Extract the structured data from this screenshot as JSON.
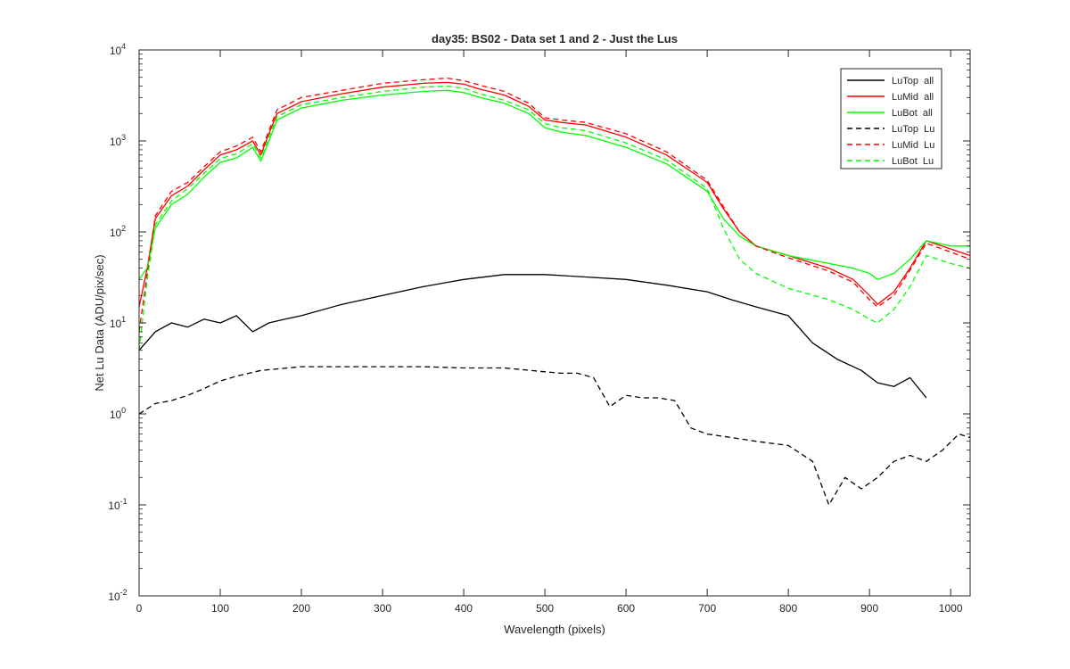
{
  "chart_data": {
    "type": "line",
    "title": "day35: BS02 - Data set 1 and 2 - Just the Lus",
    "xlabel": "Wavelength (pixels)",
    "ylabel": "Net Lu Data (ADU/pix/sec)",
    "xlim": [
      0,
      1024
    ],
    "ylim": [
      0.01,
      10000
    ],
    "yscale": "log",
    "grid": false,
    "legend_position": "top-right",
    "x_ticks": [
      "0",
      "100",
      "200",
      "300",
      "400",
      "500",
      "600",
      "700",
      "800",
      "900",
      "1000"
    ],
    "y_ticks": [
      {
        "base": "10",
        "exp": "-2"
      },
      {
        "base": "10",
        "exp": "-1"
      },
      {
        "base": "10",
        "exp": "0"
      },
      {
        "base": "10",
        "exp": "1"
      },
      {
        "base": "10",
        "exp": "2"
      },
      {
        "base": "10",
        "exp": "3"
      },
      {
        "base": "10",
        "exp": "4"
      }
    ],
    "colors": {
      "black": "#000000",
      "red": "#ff0000",
      "green": "#00ff00"
    },
    "series": [
      {
        "name": "LuTop  all",
        "color": "#000000",
        "dash": "solid",
        "x": [
          0,
          20,
          40,
          60,
          80,
          100,
          120,
          140,
          160,
          180,
          200,
          250,
          300,
          350,
          400,
          450,
          500,
          550,
          600,
          650,
          700,
          730,
          760,
          800,
          830,
          860,
          890,
          910,
          930,
          950,
          970
        ],
        "y": [
          5,
          8,
          10,
          9,
          11,
          10,
          12,
          8,
          10,
          11,
          12,
          16,
          20,
          25,
          30,
          34,
          34,
          32,
          30,
          26,
          22,
          18,
          15,
          12,
          6,
          4,
          3,
          2.2,
          2,
          2.5,
          1.5
        ]
      },
      {
        "name": "LuMid  all",
        "color": "#ff0000",
        "dash": "solid",
        "x": [
          0,
          10,
          20,
          40,
          60,
          80,
          100,
          120,
          140,
          150,
          160,
          170,
          200,
          250,
          300,
          350,
          380,
          400,
          420,
          450,
          480,
          500,
          520,
          550,
          600,
          650,
          700,
          720,
          740,
          760,
          800,
          850,
          880,
          900,
          910,
          930,
          950,
          970,
          1000,
          1024
        ],
        "y": [
          15,
          40,
          140,
          250,
          320,
          480,
          700,
          800,
          1000,
          700,
          1200,
          2000,
          2700,
          3300,
          3900,
          4300,
          4400,
          4200,
          3700,
          3200,
          2400,
          1700,
          1600,
          1500,
          1100,
          700,
          350,
          180,
          100,
          70,
          55,
          40,
          30,
          20,
          16,
          22,
          40,
          80,
          65,
          55
        ]
      },
      {
        "name": "LuBot  all",
        "color": "#00ff00",
        "dash": "solid",
        "x": [
          0,
          10,
          20,
          40,
          60,
          80,
          100,
          120,
          140,
          150,
          160,
          170,
          200,
          250,
          300,
          350,
          380,
          400,
          420,
          450,
          480,
          500,
          520,
          550,
          600,
          650,
          700,
          720,
          740,
          760,
          800,
          850,
          880,
          900,
          910,
          930,
          950,
          970,
          1000,
          1024
        ],
        "y": [
          30,
          40,
          110,
          200,
          260,
          400,
          580,
          650,
          850,
          600,
          1000,
          1700,
          2300,
          2800,
          3200,
          3500,
          3600,
          3400,
          3000,
          2600,
          2000,
          1400,
          1250,
          1150,
          850,
          560,
          280,
          140,
          90,
          70,
          55,
          45,
          40,
          35,
          30,
          35,
          50,
          80,
          70,
          70
        ]
      },
      {
        "name": "LuTop  Lu",
        "color": "#000000",
        "dash": "dashed",
        "x": [
          0,
          20,
          40,
          60,
          80,
          100,
          120,
          150,
          200,
          250,
          300,
          350,
          400,
          450,
          500,
          520,
          540,
          560,
          580,
          600,
          620,
          640,
          660,
          680,
          700,
          730,
          760,
          800,
          830,
          850,
          870,
          890,
          910,
          930,
          950,
          970,
          990,
          1010,
          1024
        ],
        "y": [
          1,
          1.3,
          1.4,
          1.6,
          1.9,
          2.3,
          2.6,
          3,
          3.3,
          3.3,
          3.3,
          3.3,
          3.2,
          3.2,
          2.9,
          2.8,
          2.8,
          2.5,
          1.2,
          1.6,
          1.5,
          1.5,
          1.4,
          0.7,
          0.6,
          0.55,
          0.5,
          0.45,
          0.3,
          0.1,
          0.2,
          0.15,
          0.2,
          0.3,
          0.35,
          0.3,
          0.4,
          0.6,
          0.55
        ]
      },
      {
        "name": "LuMid  Lu",
        "color": "#ff0000",
        "dash": "dashed",
        "x": [
          0,
          10,
          20,
          40,
          60,
          80,
          100,
          120,
          140,
          150,
          160,
          170,
          200,
          250,
          300,
          350,
          380,
          400,
          420,
          450,
          480,
          500,
          520,
          550,
          600,
          650,
          700,
          720,
          740,
          760,
          800,
          850,
          880,
          900,
          910,
          930,
          950,
          970,
          1000,
          1024
        ],
        "y": [
          8,
          35,
          150,
          280,
          350,
          520,
          760,
          880,
          1100,
          760,
          1300,
          2200,
          3000,
          3600,
          4300,
          4700,
          4900,
          4600,
          4100,
          3500,
          2600,
          1800,
          1700,
          1600,
          1200,
          760,
          370,
          190,
          100,
          70,
          52,
          37,
          28,
          18,
          15,
          20,
          38,
          75,
          60,
          50
        ]
      },
      {
        "name": "LuBot  Lu",
        "color": "#00ff00",
        "dash": "dashed",
        "x": [
          0,
          10,
          20,
          40,
          60,
          80,
          100,
          120,
          140,
          150,
          160,
          170,
          200,
          250,
          300,
          350,
          380,
          400,
          420,
          450,
          480,
          500,
          520,
          550,
          600,
          650,
          700,
          720,
          740,
          760,
          800,
          850,
          880,
          900,
          910,
          930,
          950,
          970,
          1000,
          1024
        ],
        "y": [
          5,
          30,
          120,
          220,
          300,
          440,
          640,
          720,
          930,
          650,
          1100,
          1850,
          2500,
          3000,
          3500,
          3900,
          4000,
          3800,
          3300,
          2800,
          2200,
          1550,
          1400,
          1300,
          950,
          620,
          300,
          110,
          50,
          35,
          24,
          18,
          14,
          11,
          10,
          14,
          25,
          55,
          45,
          40
        ]
      }
    ]
  }
}
